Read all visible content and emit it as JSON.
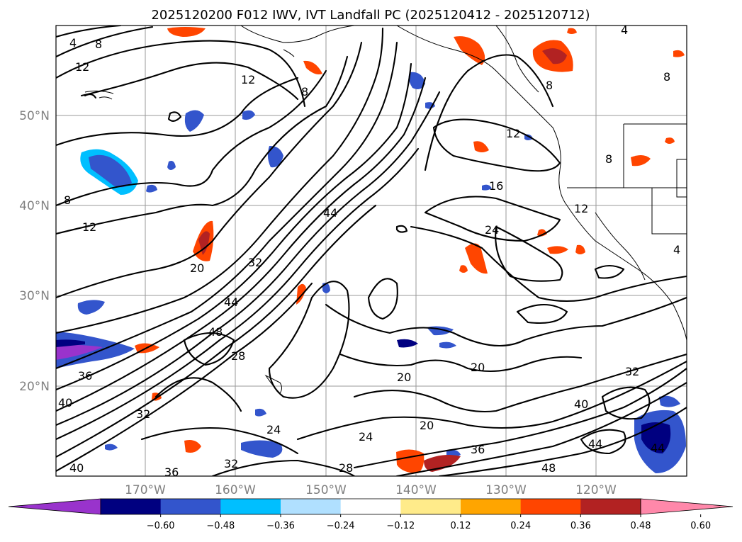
{
  "title": "2025120200 F012 IWV, IVT Landfall PC (2025120412 - 2025120712)",
  "lat_labels": [
    "50°N",
    "40°N",
    "30°N",
    "20°N"
  ],
  "lon_labels": [
    "170°W",
    "160°W",
    "150°W",
    "140°W",
    "130°W",
    "120°W"
  ],
  "colorbar": {
    "ticks": [
      "−0.60",
      "−0.48",
      "−0.36",
      "−0.24",
      "−0.12",
      "0.12",
      "0.24",
      "0.36",
      "0.48",
      "0.60"
    ],
    "colors": [
      "#9933cc",
      "#000080",
      "#3355cc",
      "#00bfff",
      "#b0e0ff",
      "#ffffff",
      "#ffeb8a",
      "#ffa500",
      "#ff4500",
      "#b22222",
      "#ff88aa"
    ]
  },
  "contour_labels": [
    "4",
    "8",
    "12",
    "12",
    "8",
    "8",
    "12",
    "16",
    "24",
    "44",
    "48",
    "44",
    "32",
    "36",
    "40",
    "28",
    "20",
    "20",
    "20",
    "24",
    "28",
    "32",
    "36",
    "40",
    "44",
    "48",
    "44",
    "40",
    "32",
    "8",
    "8",
    "4",
    "4",
    "8",
    "12",
    "20",
    "24",
    "32",
    "36",
    "12"
  ],
  "shading_colors": {
    "negative": "#3355cc",
    "negative_light": "#00bfff",
    "positive": "#ff4500",
    "positive_dark": "#b22222",
    "positive_light": "#ffa500"
  }
}
